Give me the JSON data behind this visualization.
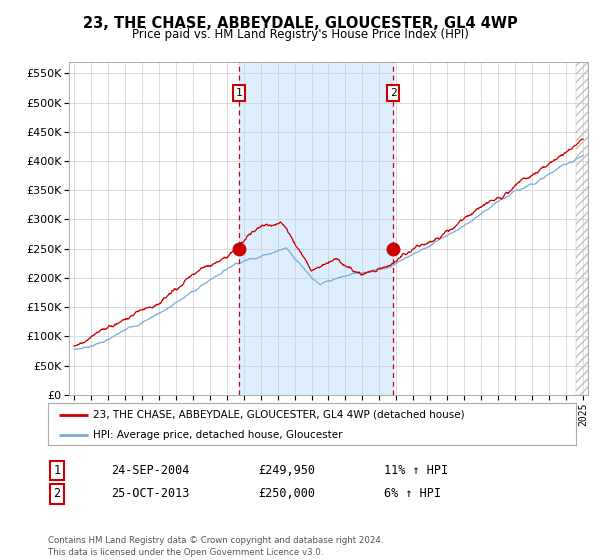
{
  "title": "23, THE CHASE, ABBEYDALE, GLOUCESTER, GL4 4WP",
  "subtitle": "Price paid vs. HM Land Registry's House Price Index (HPI)",
  "ylim": [
    0,
    570000
  ],
  "yticks": [
    0,
    50000,
    100000,
    150000,
    200000,
    250000,
    300000,
    350000,
    400000,
    450000,
    500000,
    550000
  ],
  "ytick_labels": [
    "£0",
    "£50K",
    "£100K",
    "£150K",
    "£200K",
    "£250K",
    "£300K",
    "£350K",
    "£400K",
    "£450K",
    "£500K",
    "£550K"
  ],
  "sale1_year": 2004.73,
  "sale1_price": 249950,
  "sale1_date": "24-SEP-2004",
  "sale1_hpi_pct": "11%",
  "sale2_year": 2013.81,
  "sale2_price": 250000,
  "sale2_date": "25-OCT-2013",
  "sale2_hpi_pct": "6%",
  "shade_color": "#ddeeff",
  "red_line_color": "#cc0000",
  "blue_line_color": "#7aadda",
  "sale_dot_color": "#cc0000",
  "dashed_line_color": "#cc0000",
  "grid_color": "#cccccc",
  "background_color": "#ffffff",
  "legend_label_red": "23, THE CHASE, ABBEYDALE, GLOUCESTER, GL4 4WP (detached house)",
  "legend_label_blue": "HPI: Average price, detached house, Gloucester",
  "footer": "Contains HM Land Registry data © Crown copyright and database right 2024.\nThis data is licensed under the Open Government Licence v3.0."
}
